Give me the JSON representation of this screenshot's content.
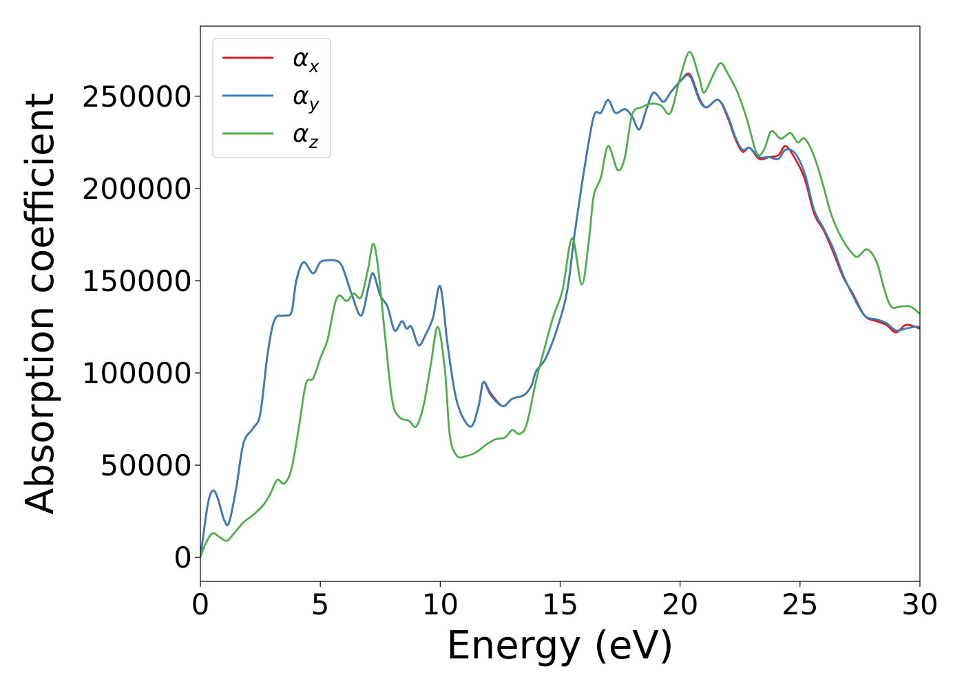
{
  "chart_data": {
    "type": "line",
    "xlabel": "Energy (eV)",
    "ylabel": "Absorption coefficient",
    "xlim": [
      0,
      30
    ],
    "ylim": [
      -13000,
      288000
    ],
    "xticks": [
      0,
      5,
      10,
      15,
      20,
      25,
      30
    ],
    "yticks": [
      0,
      50000,
      100000,
      150000,
      200000,
      250000
    ],
    "grid": false,
    "legend_position": "top-left",
    "series": [
      {
        "name": "α",
        "subscript": "x",
        "color": "#e41a1c",
        "points": [
          [
            0,
            0
          ],
          [
            0.3,
            28000
          ],
          [
            0.5,
            36000
          ],
          [
            0.7,
            33000
          ],
          [
            1.0,
            20000
          ],
          [
            1.2,
            19000
          ],
          [
            1.5,
            38000
          ],
          [
            1.8,
            62000
          ],
          [
            2.2,
            70000
          ],
          [
            2.5,
            78000
          ],
          [
            2.8,
            110000
          ],
          [
            3.1,
            129000
          ],
          [
            3.5,
            131000
          ],
          [
            3.8,
            133000
          ],
          [
            4.0,
            150000
          ],
          [
            4.3,
            160000
          ],
          [
            4.7,
            154000
          ],
          [
            5.0,
            160000
          ],
          [
            5.3,
            161000
          ],
          [
            5.6,
            161000
          ],
          [
            5.9,
            158000
          ],
          [
            6.3,
            143000
          ],
          [
            6.7,
            131000
          ],
          [
            7.0,
            146000
          ],
          [
            7.2,
            154000
          ],
          [
            7.5,
            142000
          ],
          [
            7.8,
            136000
          ],
          [
            8.1,
            123000
          ],
          [
            8.4,
            128000
          ],
          [
            8.6,
            124000
          ],
          [
            8.8,
            125000
          ],
          [
            9.1,
            115000
          ],
          [
            9.4,
            121000
          ],
          [
            9.7,
            130000
          ],
          [
            10.0,
            147000
          ],
          [
            10.3,
            116000
          ],
          [
            10.6,
            90000
          ],
          [
            10.9,
            77000
          ],
          [
            11.3,
            71000
          ],
          [
            11.6,
            82000
          ],
          [
            11.8,
            95000
          ],
          [
            12.1,
            89000
          ],
          [
            12.6,
            82000
          ],
          [
            13.0,
            86000
          ],
          [
            13.5,
            88000
          ],
          [
            13.8,
            93000
          ],
          [
            14.0,
            101000
          ],
          [
            14.4,
            108000
          ],
          [
            14.9,
            125000
          ],
          [
            15.3,
            145000
          ],
          [
            15.6,
            175000
          ],
          [
            16.0,
            210000
          ],
          [
            16.4,
            239000
          ],
          [
            16.7,
            241000
          ],
          [
            17.0,
            248000
          ],
          [
            17.3,
            241000
          ],
          [
            17.7,
            243000
          ],
          [
            18.0,
            239000
          ],
          [
            18.3,
            232000
          ],
          [
            18.6,
            243000
          ],
          [
            18.9,
            252000
          ],
          [
            19.3,
            247000
          ],
          [
            19.6,
            252000
          ],
          [
            20.0,
            258000
          ],
          [
            20.4,
            262000
          ],
          [
            20.8,
            249000
          ],
          [
            21.1,
            244000
          ],
          [
            21.6,
            248000
          ],
          [
            22.0,
            238000
          ],
          [
            22.3,
            227000
          ],
          [
            22.6,
            220000
          ],
          [
            22.9,
            222000
          ],
          [
            23.3,
            216000
          ],
          [
            23.7,
            217000
          ],
          [
            24.1,
            218000
          ],
          [
            24.4,
            223000
          ],
          [
            24.8,
            216000
          ],
          [
            25.2,
            205000
          ],
          [
            25.6,
            186000
          ],
          [
            26.0,
            177000
          ],
          [
            26.4,
            165000
          ],
          [
            26.8,
            152000
          ],
          [
            27.2,
            143000
          ],
          [
            27.7,
            131000
          ],
          [
            28.2,
            128000
          ],
          [
            28.6,
            126000
          ],
          [
            29.0,
            122000
          ],
          [
            29.4,
            126000
          ],
          [
            29.8,
            125000
          ],
          [
            30.0,
            124000
          ]
        ]
      },
      {
        "name": "α",
        "subscript": "y",
        "color": "#377eb8",
        "points": [
          [
            0,
            0
          ],
          [
            0.3,
            28000
          ],
          [
            0.5,
            36000
          ],
          [
            0.7,
            33000
          ],
          [
            1.0,
            20000
          ],
          [
            1.2,
            19000
          ],
          [
            1.5,
            38000
          ],
          [
            1.8,
            62000
          ],
          [
            2.2,
            70000
          ],
          [
            2.5,
            78000
          ],
          [
            2.8,
            110000
          ],
          [
            3.1,
            129000
          ],
          [
            3.5,
            131000
          ],
          [
            3.8,
            133000
          ],
          [
            4.0,
            150000
          ],
          [
            4.3,
            160000
          ],
          [
            4.7,
            154000
          ],
          [
            5.0,
            160000
          ],
          [
            5.3,
            161000
          ],
          [
            5.6,
            161000
          ],
          [
            5.9,
            158000
          ],
          [
            6.3,
            143000
          ],
          [
            6.7,
            131000
          ],
          [
            7.0,
            146000
          ],
          [
            7.2,
            154000
          ],
          [
            7.5,
            142000
          ],
          [
            7.8,
            136000
          ],
          [
            8.1,
            123000
          ],
          [
            8.4,
            128000
          ],
          [
            8.6,
            124000
          ],
          [
            8.8,
            125000
          ],
          [
            9.1,
            115000
          ],
          [
            9.4,
            121000
          ],
          [
            9.7,
            130000
          ],
          [
            10.0,
            147000
          ],
          [
            10.3,
            116000
          ],
          [
            10.6,
            90000
          ],
          [
            10.9,
            77000
          ],
          [
            11.3,
            71000
          ],
          [
            11.6,
            82000
          ],
          [
            11.8,
            95000
          ],
          [
            12.1,
            88000
          ],
          [
            12.6,
            82000
          ],
          [
            13.0,
            86000
          ],
          [
            13.5,
            88000
          ],
          [
            13.8,
            93000
          ],
          [
            14.0,
            101000
          ],
          [
            14.4,
            108000
          ],
          [
            14.9,
            125000
          ],
          [
            15.3,
            145000
          ],
          [
            15.6,
            175000
          ],
          [
            16.0,
            210000
          ],
          [
            16.4,
            239000
          ],
          [
            16.7,
            241000
          ],
          [
            17.0,
            248000
          ],
          [
            17.3,
            241000
          ],
          [
            17.7,
            243000
          ],
          [
            18.0,
            239000
          ],
          [
            18.3,
            232000
          ],
          [
            18.6,
            243000
          ],
          [
            18.9,
            252000
          ],
          [
            19.3,
            247000
          ],
          [
            19.6,
            252000
          ],
          [
            20.0,
            258000
          ],
          [
            20.4,
            261000
          ],
          [
            20.8,
            248000
          ],
          [
            21.1,
            244000
          ],
          [
            21.6,
            248000
          ],
          [
            22.0,
            239000
          ],
          [
            22.3,
            228000
          ],
          [
            22.6,
            221000
          ],
          [
            22.9,
            222000
          ],
          [
            23.3,
            217000
          ],
          [
            23.7,
            217000
          ],
          [
            24.1,
            216000
          ],
          [
            24.4,
            221000
          ],
          [
            24.8,
            219000
          ],
          [
            25.2,
            208000
          ],
          [
            25.6,
            188000
          ],
          [
            26.0,
            178000
          ],
          [
            26.4,
            167000
          ],
          [
            26.8,
            153000
          ],
          [
            27.2,
            142000
          ],
          [
            27.7,
            131000
          ],
          [
            28.2,
            129000
          ],
          [
            28.6,
            127000
          ],
          [
            29.0,
            123000
          ],
          [
            29.4,
            124000
          ],
          [
            29.8,
            125000
          ],
          [
            30.0,
            125000
          ]
        ]
      },
      {
        "name": "α",
        "subscript": "z",
        "color": "#4daf4a",
        "points": [
          [
            0,
            0
          ],
          [
            0.2,
            7000
          ],
          [
            0.5,
            13000
          ],
          [
            0.8,
            11000
          ],
          [
            1.1,
            9000
          ],
          [
            1.4,
            13000
          ],
          [
            1.8,
            19000
          ],
          [
            2.2,
            23000
          ],
          [
            2.6,
            28000
          ],
          [
            2.9,
            34000
          ],
          [
            3.2,
            42000
          ],
          [
            3.5,
            40000
          ],
          [
            3.8,
            48000
          ],
          [
            4.1,
            70000
          ],
          [
            4.4,
            94000
          ],
          [
            4.7,
            97000
          ],
          [
            5.0,
            108000
          ],
          [
            5.3,
            118000
          ],
          [
            5.6,
            137000
          ],
          [
            5.8,
            142000
          ],
          [
            6.1,
            139000
          ],
          [
            6.4,
            143000
          ],
          [
            6.7,
            141000
          ],
          [
            7.0,
            157000
          ],
          [
            7.2,
            170000
          ],
          [
            7.4,
            158000
          ],
          [
            7.7,
            120000
          ],
          [
            8.0,
            85000
          ],
          [
            8.3,
            76000
          ],
          [
            8.7,
            74000
          ],
          [
            9.0,
            71000
          ],
          [
            9.3,
            82000
          ],
          [
            9.6,
            104000
          ],
          [
            9.9,
            125000
          ],
          [
            10.2,
            101000
          ],
          [
            10.4,
            66000
          ],
          [
            10.7,
            55000
          ],
          [
            11.1,
            55000
          ],
          [
            11.5,
            57000
          ],
          [
            11.9,
            61000
          ],
          [
            12.3,
            64000
          ],
          [
            12.7,
            65000
          ],
          [
            13.0,
            69000
          ],
          [
            13.3,
            67000
          ],
          [
            13.6,
            72000
          ],
          [
            14.0,
            96000
          ],
          [
            14.3,
            111000
          ],
          [
            14.7,
            130000
          ],
          [
            15.1,
            145000
          ],
          [
            15.5,
            173000
          ],
          [
            15.9,
            148000
          ],
          [
            16.2,
            172000
          ],
          [
            16.4,
            196000
          ],
          [
            16.7,
            206000
          ],
          [
            17.0,
            223000
          ],
          [
            17.4,
            210000
          ],
          [
            17.7,
            217000
          ],
          [
            18.0,
            240000
          ],
          [
            18.4,
            244000
          ],
          [
            18.8,
            246000
          ],
          [
            19.2,
            245000
          ],
          [
            19.6,
            241000
          ],
          [
            20.0,
            260000
          ],
          [
            20.4,
            274000
          ],
          [
            20.8,
            260000
          ],
          [
            21.0,
            252000
          ],
          [
            21.4,
            262000
          ],
          [
            21.7,
            268000
          ],
          [
            22.0,
            262000
          ],
          [
            22.4,
            252000
          ],
          [
            22.8,
            237000
          ],
          [
            23.2,
            219000
          ],
          [
            23.5,
            221000
          ],
          [
            23.8,
            231000
          ],
          [
            24.2,
            227000
          ],
          [
            24.6,
            230000
          ],
          [
            24.9,
            225000
          ],
          [
            25.2,
            227000
          ],
          [
            25.6,
            217000
          ],
          [
            26.0,
            200000
          ],
          [
            26.3,
            186000
          ],
          [
            26.7,
            174000
          ],
          [
            27.1,
            166000
          ],
          [
            27.4,
            163000
          ],
          [
            27.8,
            167000
          ],
          [
            28.2,
            160000
          ],
          [
            28.5,
            146000
          ],
          [
            28.8,
            136000
          ],
          [
            29.2,
            136000
          ],
          [
            29.6,
            136000
          ],
          [
            30.0,
            132000
          ]
        ]
      }
    ]
  }
}
